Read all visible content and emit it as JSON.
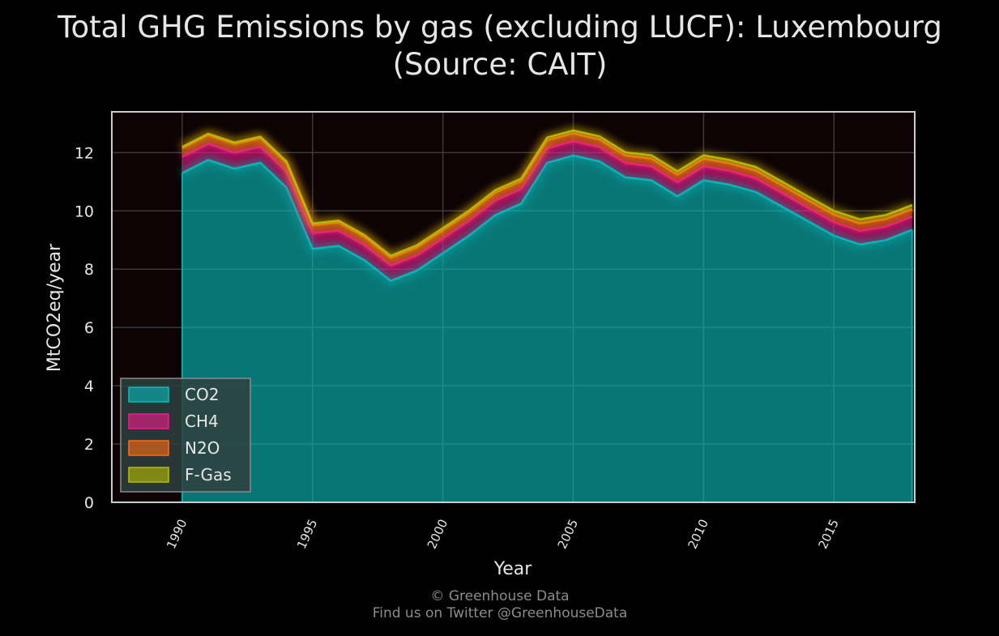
{
  "chart_data": {
    "type": "area",
    "title": "Total GHG Emissions by gas (excluding LUCF): Luxembourg (Source: CAIT)",
    "title_lines": [
      "Total GHG Emissions by gas (excluding LUCF): Luxembourg",
      "(Source: CAIT)"
    ],
    "xlabel": "Year",
    "ylabel": "MtCO2eq/year",
    "xlim": [
      1987.3,
      2018.1
    ],
    "ylim": [
      0,
      13.4
    ],
    "xticks": [
      1990,
      1995,
      2000,
      2005,
      2010,
      2015
    ],
    "yticks": [
      0,
      2,
      4,
      6,
      8,
      10,
      12
    ],
    "grid": true,
    "stacked": true,
    "legend_position": "lower-left",
    "x": [
      1990,
      1991,
      1992,
      1993,
      1994,
      1995,
      1996,
      1997,
      1998,
      1999,
      2000,
      2001,
      2002,
      2003,
      2004,
      2005,
      2006,
      2007,
      2008,
      2009,
      2010,
      2011,
      2012,
      2013,
      2014,
      2015,
      2016,
      2017,
      2018
    ],
    "series": [
      {
        "name": "CO2",
        "color": "#08bdbd",
        "values": [
          11.3,
          11.75,
          11.45,
          11.65,
          10.8,
          8.7,
          8.8,
          8.3,
          7.6,
          7.95,
          8.55,
          9.15,
          9.85,
          10.25,
          11.65,
          11.9,
          11.7,
          11.15,
          11.05,
          10.5,
          11.05,
          10.9,
          10.65,
          10.15,
          9.65,
          9.15,
          8.85,
          9.0,
          9.35
        ]
      },
      {
        "name": "CH4",
        "color": "#f21a8c",
        "values": [
          0.55,
          0.55,
          0.55,
          0.55,
          0.55,
          0.53,
          0.52,
          0.52,
          0.52,
          0.52,
          0.51,
          0.51,
          0.5,
          0.5,
          0.5,
          0.49,
          0.49,
          0.49,
          0.48,
          0.48,
          0.48,
          0.47,
          0.47,
          0.47,
          0.46,
          0.46,
          0.46,
          0.46,
          0.45
        ]
      },
      {
        "name": "N2O",
        "color": "#ff6c11",
        "values": [
          0.3,
          0.3,
          0.3,
          0.29,
          0.29,
          0.28,
          0.28,
          0.28,
          0.27,
          0.27,
          0.27,
          0.27,
          0.27,
          0.27,
          0.27,
          0.27,
          0.26,
          0.26,
          0.26,
          0.26,
          0.26,
          0.26,
          0.26,
          0.26,
          0.26,
          0.26,
          0.26,
          0.26,
          0.26
        ]
      },
      {
        "name": "F-Gas",
        "color": "#bac000",
        "values": [
          0.05,
          0.05,
          0.05,
          0.06,
          0.06,
          0.06,
          0.07,
          0.07,
          0.07,
          0.08,
          0.08,
          0.08,
          0.09,
          0.09,
          0.1,
          0.1,
          0.11,
          0.11,
          0.12,
          0.12,
          0.12,
          0.12,
          0.13,
          0.13,
          0.13,
          0.13,
          0.14,
          0.14,
          0.14
        ]
      }
    ]
  },
  "footer": {
    "line1": "© Greenhouse Data",
    "line2": "Find us on Twitter @GreenhouseData"
  },
  "colors": {
    "background": "#000000",
    "plot_background": "#0d0304",
    "text": "#e6e6e6",
    "footer_text": "#8c8c8c",
    "frame": "#cccccc",
    "grid": "#3a3a3a"
  }
}
